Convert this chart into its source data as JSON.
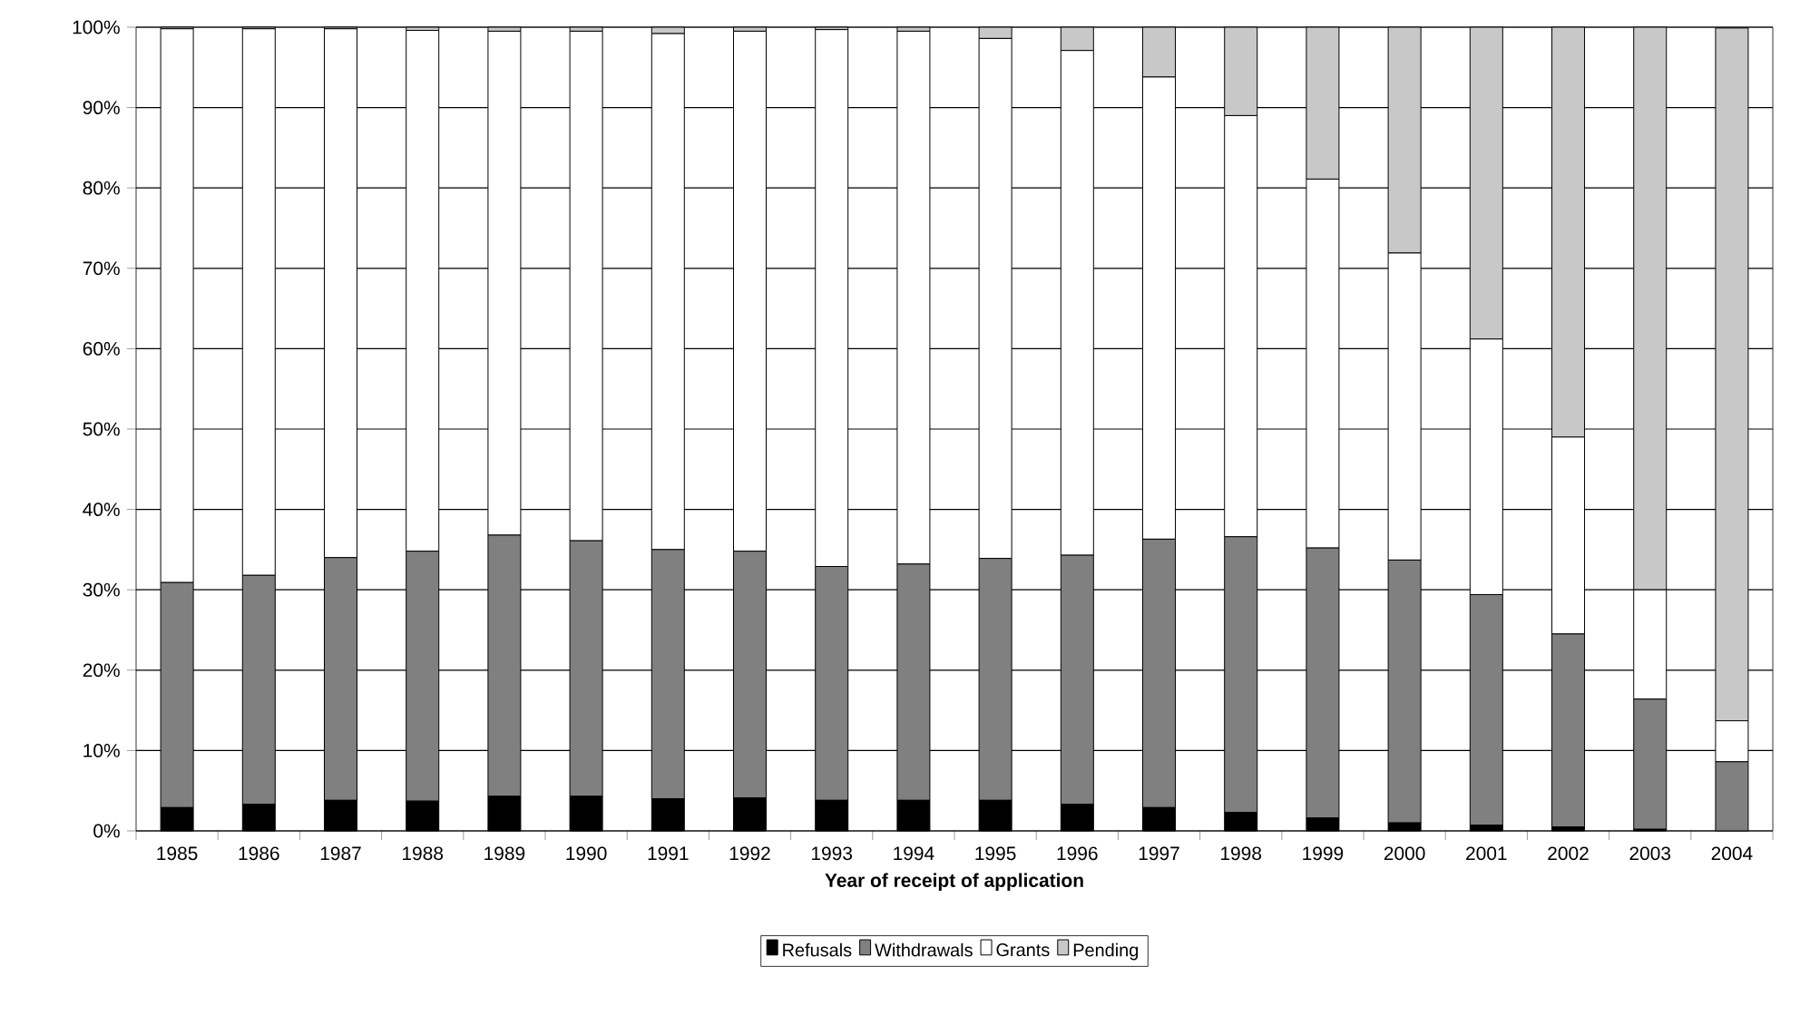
{
  "chart_data": {
    "type": "bar",
    "stacked": true,
    "xlabel": "Year of receipt of application",
    "categories": [
      "1985",
      "1986",
      "1987",
      "1988",
      "1989",
      "1990",
      "1991",
      "1992",
      "1993",
      "1994",
      "1995",
      "1996",
      "1997",
      "1998",
      "1999",
      "2000",
      "2001",
      "2002",
      "2003",
      "2004"
    ],
    "series": [
      {
        "name": "Refusals",
        "color": "#000000",
        "values": [
          2.9,
          3.3,
          3.8,
          3.7,
          4.3,
          4.3,
          4.0,
          4.1,
          3.8,
          3.8,
          3.8,
          3.3,
          2.9,
          2.3,
          1.6,
          1.0,
          0.7,
          0.5,
          0.2,
          null
        ]
      },
      {
        "name": "Withdrawals",
        "color": "#808080",
        "values": [
          28.0,
          28.5,
          30.2,
          31.1,
          32.5,
          31.8,
          31.0,
          30.7,
          29.1,
          29.4,
          30.1,
          31.0,
          33.4,
          34.3,
          33.6,
          32.7,
          28.7,
          24.0,
          16.2,
          8.6
        ]
      },
      {
        "name": "Grants",
        "color": "#ffffff",
        "values": [
          68.9,
          68.0,
          65.8,
          64.8,
          62.7,
          63.4,
          64.2,
          64.7,
          66.8,
          66.3,
          64.7,
          62.8,
          57.5,
          52.4,
          45.9,
          38.2,
          31.8,
          24.5,
          13.6,
          5.1
        ]
      },
      {
        "name": "Pending",
        "color": "#c8c8c8",
        "values": [
          0.2,
          0.2,
          0.2,
          0.4,
          0.5,
          0.5,
          0.8,
          0.5,
          0.3,
          0.5,
          1.4,
          2.9,
          6.2,
          11.0,
          18.9,
          28.1,
          38.8,
          51.0,
          70.0,
          86.2
        ]
      }
    ],
    "ylim": [
      0,
      100
    ],
    "yticks": [
      {
        "value": 0,
        "label": "0%"
      },
      {
        "value": 10,
        "label": "10%"
      },
      {
        "value": 20,
        "label": "20%"
      },
      {
        "value": 30,
        "label": "30%"
      },
      {
        "value": 40,
        "label": "40%"
      },
      {
        "value": 50,
        "label": "50%"
      },
      {
        "value": 60,
        "label": "60%"
      },
      {
        "value": 70,
        "label": "70%"
      },
      {
        "value": 80,
        "label": "80%"
      },
      {
        "value": 90,
        "label": "90%"
      },
      {
        "value": 100,
        "label": "100%"
      }
    ],
    "grid": "y",
    "legend": "bottom"
  }
}
